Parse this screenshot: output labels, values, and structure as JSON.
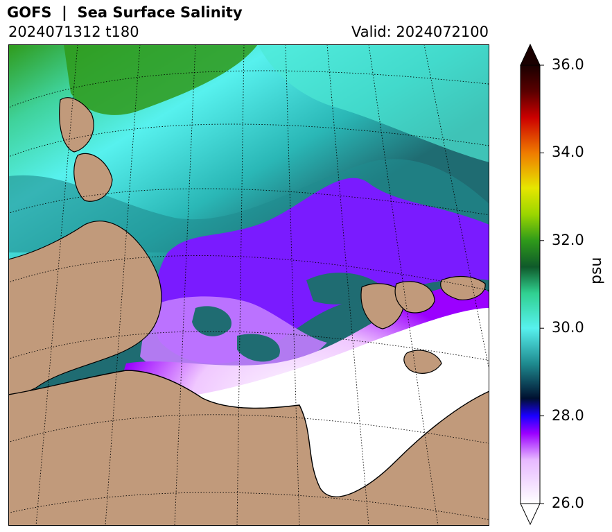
{
  "header": {
    "title": "GOFS  |  Sea Surface Salinity",
    "run": "2024071312 t180",
    "valid": "Valid: 2024072100"
  },
  "colorbar": {
    "label": "psu",
    "min": 26.0,
    "max": 36.0,
    "ticks": [
      "26.0",
      "28.0",
      "30.0",
      "32.0",
      "34.0",
      "36.0"
    ],
    "extend": "both"
  },
  "colors": {
    "land": "#c19a7b",
    "coastline": "#000000",
    "graticule": "#000000",
    "fresh": "#ffffff",
    "low": "#9b00ff",
    "mid": "#35dcd0",
    "high": "#2f9a1a"
  }
}
